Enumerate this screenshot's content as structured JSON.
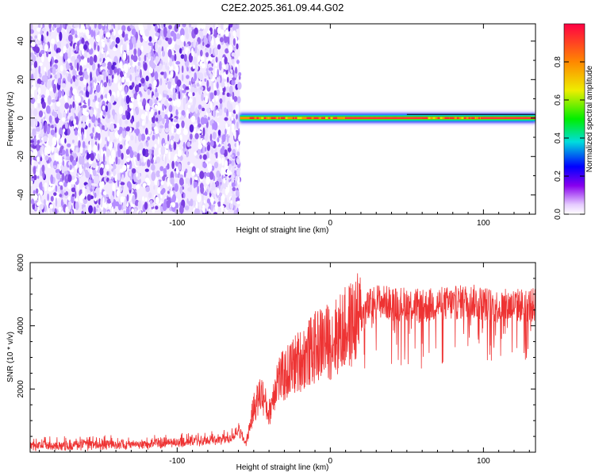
{
  "title": "C2E2.2025.361.09.44.G02",
  "chart_data": [
    {
      "type": "heatmap",
      "title": "C2E2.2025.361.09.44.G02",
      "xlabel": "Height of straight line (km)",
      "ylabel": "Frequency (Hz)",
      "xlim": [
        -196,
        134
      ],
      "ylim": [
        -50,
        49
      ],
      "xticks": [
        -100,
        0,
        100
      ],
      "xtick_labels": [
        "-100",
        "0",
        "100"
      ],
      "yticks": [
        -40,
        -20,
        0,
        20,
        40
      ],
      "ytick_labels": [
        "-40",
        "-20",
        "0",
        "20",
        "40"
      ],
      "noise_region_x": [
        -196,
        -59
      ],
      "signal_band_x": [
        -59,
        134
      ],
      "signal_frequency_hz": 0,
      "colorbar": {
        "label": "Normalized spectral amplitude",
        "range": [
          0,
          1
        ],
        "ticks": [
          0.0,
          0.2,
          0.4,
          0.6,
          0.8
        ],
        "tick_labels": [
          "0.0",
          "0.2",
          "0.4",
          "0.6",
          "0.8"
        ]
      }
    },
    {
      "type": "line",
      "xlabel": "Height of straight line (km)",
      "ylabel": "SNR (10 * v/v)",
      "xlim": [
        -196,
        134
      ],
      "ylim": [
        0,
        6000
      ],
      "xticks": [
        -100,
        0,
        100
      ],
      "xtick_labels": [
        "-100",
        "0",
        "100"
      ],
      "yticks": [
        2000,
        4000,
        6000
      ],
      "ytick_labels": [
        "2000",
        "4000",
        "6000"
      ],
      "series": [
        {
          "name": "SNR",
          "color": "#ee3333",
          "x": [
            -196,
            -160,
            -120,
            -90,
            -65,
            -60,
            -55,
            -50,
            -45,
            -40,
            -35,
            -30,
            -25,
            -20,
            -15,
            -10,
            -5,
            0,
            5,
            10,
            15,
            20,
            25,
            30,
            40,
            50,
            60,
            70,
            80,
            90,
            100,
            110,
            120,
            134
          ],
          "y": [
            200,
            230,
            260,
            330,
            430,
            700,
            280,
            1400,
            1900,
            1200,
            2300,
            2400,
            2700,
            2900,
            3100,
            3300,
            3500,
            3500,
            3700,
            3900,
            4100,
            4300,
            4600,
            4800,
            4700,
            4700,
            4600,
            4700,
            4700,
            4800,
            4700,
            4600,
            4650,
            4650
          ]
        }
      ]
    }
  ]
}
